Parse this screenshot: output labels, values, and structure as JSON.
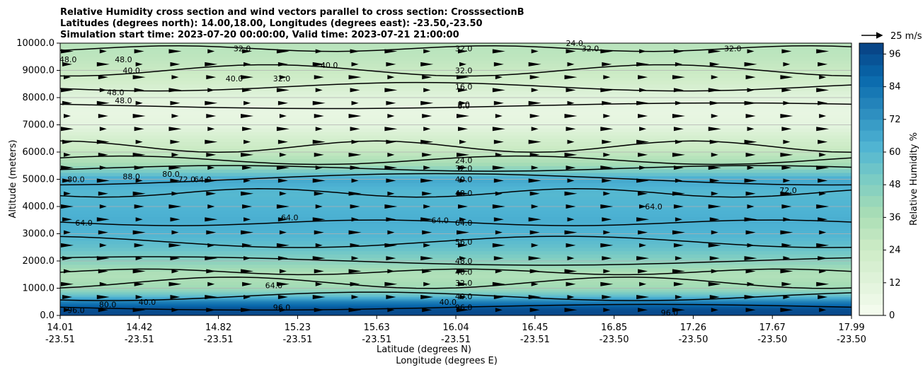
{
  "chart_data": {
    "type": "heatmap",
    "title_lines": [
      "Relative Humidity cross section and wind vectors parallel to cross section: CrosssectionB",
      "Latitudes (degrees north): 14.00,18.00, Longitudes (degrees east): -23.50,-23.50",
      "Simulation start time: 2023-07-20 00:00:00, Valid time: 2023-07-21 21:00:00"
    ],
    "xlabel_lat": "Latitude (degrees N)",
    "xlabel_lon": "Longitude (degrees E)",
    "ylabel": "Altitude (meters)",
    "ylim": [
      0,
      10000
    ],
    "x_ticks": [
      {
        "lat": "14.01",
        "lon": "-23.51"
      },
      {
        "lat": "14.42",
        "lon": "-23.51"
      },
      {
        "lat": "14.82",
        "lon": "-23.51"
      },
      {
        "lat": "15.23",
        "lon": "-23.51"
      },
      {
        "lat": "15.63",
        "lon": "-23.51"
      },
      {
        "lat": "16.04",
        "lon": "-23.51"
      },
      {
        "lat": "16.45",
        "lon": "-23.51"
      },
      {
        "lat": "16.85",
        "lon": "-23.50"
      },
      {
        "lat": "17.26",
        "lon": "-23.50"
      },
      {
        "lat": "17.67",
        "lon": "-23.50"
      },
      {
        "lat": "17.99",
        "lon": "-23.50"
      }
    ],
    "y_ticks": [
      "0.0",
      "1000.0",
      "2000.0",
      "3000.0",
      "4000.0",
      "5000.0",
      "6000.0",
      "7000.0",
      "8000.0",
      "9000.0",
      "10000.0"
    ],
    "y_tick_values": [
      0,
      1000,
      2000,
      3000,
      4000,
      5000,
      6000,
      7000,
      8000,
      9000,
      10000
    ],
    "grid": true,
    "colorbar": {
      "label": "Relative Humidity %",
      "min": 0,
      "max": 100,
      "step": 4,
      "ticks": [
        "0",
        "12",
        "24",
        "36",
        "48",
        "60",
        "72",
        "84",
        "96"
      ],
      "tick_values": [
        0,
        12,
        24,
        36,
        48,
        60,
        72,
        84,
        96
      ],
      "colors": [
        "#f7fcf0",
        "#e0f3db",
        "#ccebc5",
        "#a8ddb5",
        "#7bccc4",
        "#4eb3d3",
        "#2b8cbe",
        "#0868ac",
        "#084081"
      ]
    },
    "wind_key": "25 m/s",
    "humidity_profile": [
      {
        "alt": 0,
        "rh": 98
      },
      {
        "alt": 250,
        "rh": 95
      },
      {
        "alt": 500,
        "rh": 80
      },
      {
        "alt": 750,
        "rh": 55
      },
      {
        "alt": 1000,
        "rh": 40
      },
      {
        "alt": 1500,
        "rh": 34
      },
      {
        "alt": 2000,
        "rh": 46
      },
      {
        "alt": 2500,
        "rh": 56
      },
      {
        "alt": 3000,
        "rh": 62
      },
      {
        "alt": 3500,
        "rh": 64
      },
      {
        "alt": 4000,
        "rh": 62
      },
      {
        "alt": 4500,
        "rh": 60
      },
      {
        "alt": 5000,
        "rh": 66
      },
      {
        "alt": 5500,
        "rh": 40
      },
      {
        "alt": 6000,
        "rh": 28
      },
      {
        "alt": 6500,
        "rh": 20
      },
      {
        "alt": 7000,
        "rh": 10
      },
      {
        "alt": 7500,
        "rh": 8
      },
      {
        "alt": 8000,
        "rh": 12
      },
      {
        "alt": 8500,
        "rh": 20
      },
      {
        "alt": 9000,
        "rh": 26
      },
      {
        "alt": 9500,
        "rh": 30
      },
      {
        "alt": 10000,
        "rh": 32
      }
    ],
    "contour_levels": [
      {
        "alt": 300,
        "value": "96.0"
      },
      {
        "alt": 700,
        "value": "40.0"
      },
      {
        "alt": 1200,
        "value": "32.0"
      },
      {
        "alt": 1600,
        "value": "40.0"
      },
      {
        "alt": 2000,
        "value": "48.0"
      },
      {
        "alt": 2700,
        "value": "56.0"
      },
      {
        "alt": 3400,
        "value": "64.0"
      },
      {
        "alt": 4500,
        "value": "48.0"
      },
      {
        "alt": 5000,
        "value": "40.0"
      },
      {
        "alt": 5400,
        "value": "32.0"
      },
      {
        "alt": 5700,
        "value": "24.0"
      },
      {
        "alt": 6200,
        "value": ""
      },
      {
        "alt": 7700,
        "value": "8.0"
      },
      {
        "alt": 8400,
        "value": "16.0"
      },
      {
        "alt": 9000,
        "value": "32.0"
      },
      {
        "alt": 9800,
        "value": "32.0"
      }
    ],
    "contour_labels_extra": [
      {
        "text": "8.0",
        "alt": 7750,
        "frac": 0.51
      },
      {
        "text": "24.0",
        "alt": 10000,
        "frac": 0.65
      },
      {
        "text": "40.0",
        "alt": 8700,
        "frac": 0.22
      },
      {
        "text": "32.0",
        "alt": 8700,
        "frac": 0.28
      },
      {
        "text": "40.0",
        "alt": 9200,
        "frac": 0.34
      },
      {
        "text": "48.0",
        "alt": 9400,
        "frac": 0.01
      },
      {
        "text": "48.0",
        "alt": 9400,
        "frac": 0.08
      },
      {
        "text": "40.0",
        "alt": 9000,
        "frac": 0.09
      },
      {
        "text": "48.0",
        "alt": 8200,
        "frac": 0.07
      },
      {
        "text": "48.0",
        "alt": 7900,
        "frac": 0.08
      },
      {
        "text": "32.0",
        "alt": 9800,
        "frac": 0.23
      },
      {
        "text": "32.0",
        "alt": 9800,
        "frac": 0.67
      },
      {
        "text": "32.0",
        "alt": 9800,
        "frac": 0.85
      },
      {
        "text": "64.0",
        "alt": 5000,
        "frac": 0.18
      },
      {
        "text": "72.0",
        "alt": 5000,
        "frac": 0.16
      },
      {
        "text": "80.0",
        "alt": 5200,
        "frac": 0.14
      },
      {
        "text": "80.0",
        "alt": 5000,
        "frac": 0.02
      },
      {
        "text": "88.0",
        "alt": 5100,
        "frac": 0.09
      },
      {
        "text": "64.0",
        "alt": 3400,
        "frac": 0.03
      },
      {
        "text": "64.0",
        "alt": 3600,
        "frac": 0.29
      },
      {
        "text": "64.0",
        "alt": 3500,
        "frac": 0.48
      },
      {
        "text": "64.0",
        "alt": 4000,
        "frac": 0.75
      },
      {
        "text": "72.0",
        "alt": 4600,
        "frac": 0.92
      },
      {
        "text": "96.0",
        "alt": 200,
        "frac": 0.02
      },
      {
        "text": "96.0",
        "alt": 300,
        "frac": 0.28
      },
      {
        "text": "96.0",
        "alt": 100,
        "frac": 0.77
      },
      {
        "text": "80.0",
        "alt": 400,
        "frac": 0.06
      },
      {
        "text": "40.0",
        "alt": 500,
        "frac": 0.11
      },
      {
        "text": "64.0",
        "alt": 1100,
        "frac": 0.27
      },
      {
        "text": "40.0",
        "alt": 500,
        "frac": 0.49
      }
    ]
  }
}
